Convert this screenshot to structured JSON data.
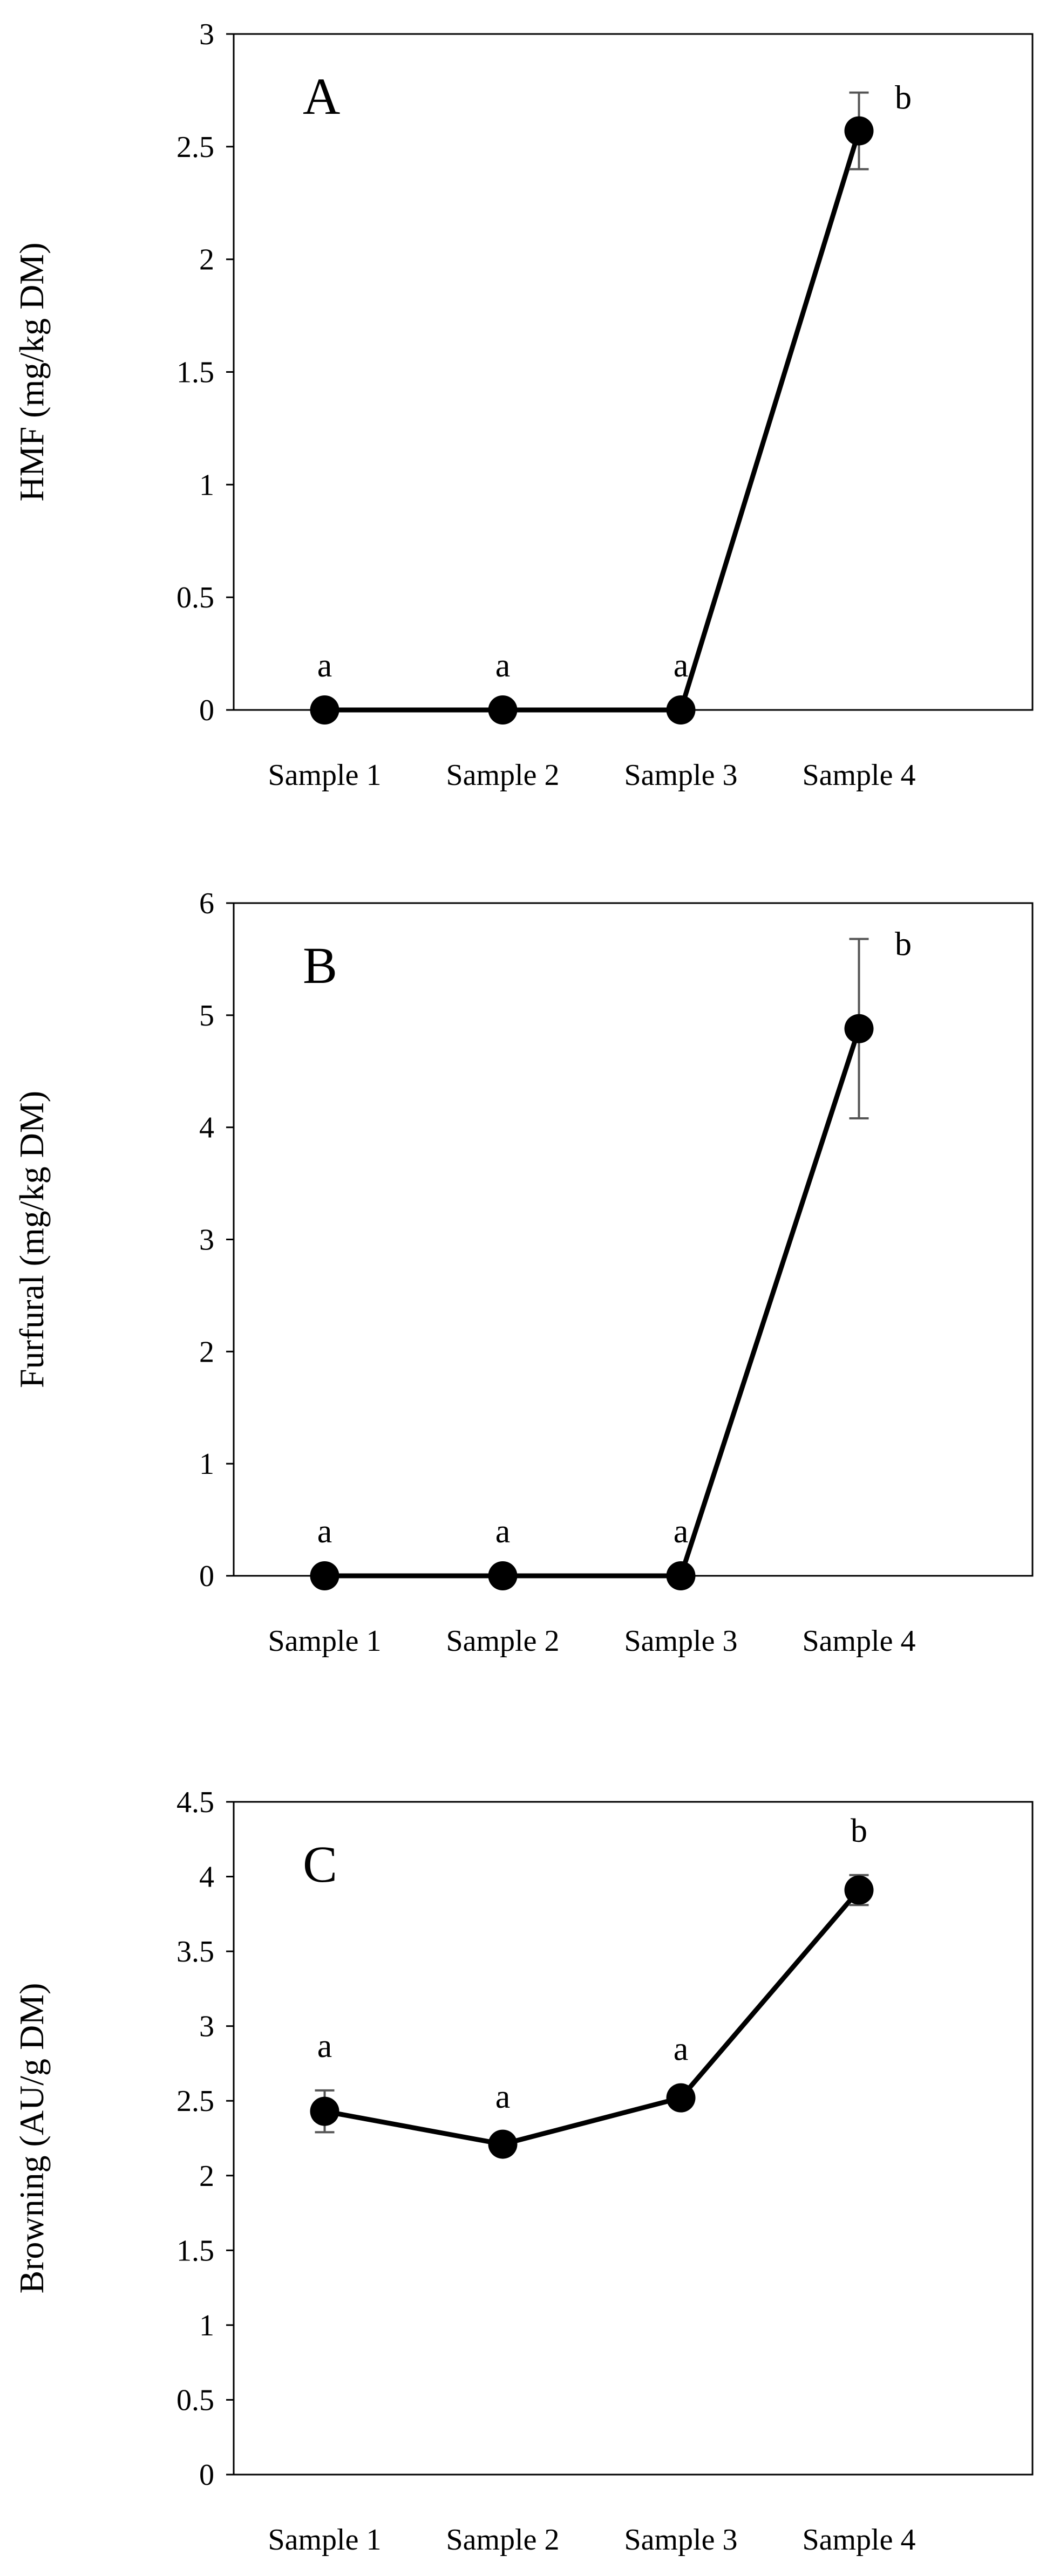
{
  "chart_data": [
    {
      "type": "line",
      "panel_label": "A",
      "categories": [
        "Sample 1",
        "Sample 2",
        "Sample 3",
        "Sample 4"
      ],
      "values": [
        0,
        0,
        0,
        2.57
      ],
      "error": [
        0,
        0,
        0,
        0.17
      ],
      "significance": [
        "a",
        "a",
        "a",
        "b"
      ],
      "ylabel": "HMF (mg/kg DM)",
      "ylim": [
        0,
        3
      ],
      "yticks": [
        0,
        0.5,
        1,
        1.5,
        2,
        2.5,
        3
      ],
      "ytick_labels": [
        "0",
        "0.5",
        "1",
        "1.5",
        "2",
        "2.5",
        "3"
      ],
      "grid": false,
      "line_color": "#000000",
      "marker_color": "#000000",
      "errorbar_color": "#555555"
    },
    {
      "type": "line",
      "panel_label": "B",
      "categories": [
        "Sample 1",
        "Sample 2",
        "Sample 3",
        "Sample 4"
      ],
      "values": [
        0,
        0,
        0,
        4.88
      ],
      "error": [
        0,
        0,
        0,
        0.8
      ],
      "significance": [
        "a",
        "a",
        "a",
        "b"
      ],
      "ylabel": "Furfural (mg/kg DM)",
      "ylim": [
        0,
        6
      ],
      "yticks": [
        0,
        1,
        2,
        3,
        4,
        5,
        6
      ],
      "ytick_labels": [
        "0",
        "1",
        "2",
        "3",
        "4",
        "5",
        "6"
      ],
      "grid": false,
      "line_color": "#000000",
      "marker_color": "#000000",
      "errorbar_color": "#555555"
    },
    {
      "type": "line",
      "panel_label": "C",
      "categories": [
        "Sample 1",
        "Sample 2",
        "Sample 3",
        "Sample 4"
      ],
      "values": [
        2.43,
        2.21,
        2.52,
        3.91
      ],
      "error": [
        0.14,
        0.02,
        0.03,
        0.1
      ],
      "significance": [
        "a",
        "a",
        "a",
        "b"
      ],
      "ylabel": "Browning (AU/g DM)",
      "ylim": [
        0,
        4.5
      ],
      "yticks": [
        0,
        0.5,
        1,
        1.5,
        2,
        2.5,
        3,
        3.5,
        4,
        4.5
      ],
      "ytick_labels": [
        "0",
        "0.5",
        "1",
        "1.5",
        "2",
        "2.5",
        "3",
        "3.5",
        "4",
        "4.5"
      ],
      "grid": false,
      "line_color": "#000000",
      "marker_color": "#000000",
      "errorbar_color": "#555555"
    }
  ]
}
